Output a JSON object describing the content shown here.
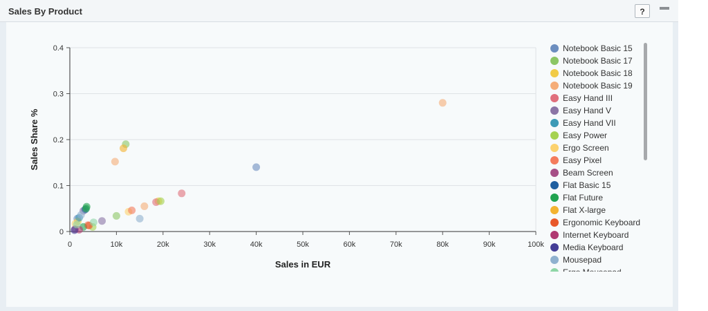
{
  "header": {
    "title": "Sales By Product",
    "help_label": "?"
  },
  "chart_data": {
    "type": "scatter",
    "xlabel": "Sales in EUR",
    "ylabel": "Sales Share %",
    "xlim": [
      0,
      100000
    ],
    "ylim": [
      0,
      0.4
    ],
    "x_ticks": [
      "0",
      "10k",
      "20k",
      "30k",
      "40k",
      "50k",
      "60k",
      "70k",
      "80k",
      "90k",
      "100k"
    ],
    "y_ticks": [
      "0",
      "0.1",
      "0.2",
      "0.3",
      "0.4"
    ],
    "grid": "horizontal",
    "legend_position": "right",
    "series": [
      {
        "name": "Notebook Basic 15",
        "color": "#6c8ebf",
        "points": [
          [
            40000,
            0.14
          ],
          [
            1600,
            0.028
          ]
        ]
      },
      {
        "name": "Notebook Basic 17",
        "color": "#8cc665",
        "points": [
          [
            12000,
            0.19
          ],
          [
            10000,
            0.034
          ]
        ]
      },
      {
        "name": "Notebook Basic 18",
        "color": "#f1cb47",
        "points": [
          [
            19000,
            0.066
          ],
          [
            1700,
            0.022
          ]
        ]
      },
      {
        "name": "Notebook Basic 19",
        "color": "#f5ad78",
        "points": [
          [
            80000,
            0.28
          ],
          [
            9700,
            0.152
          ],
          [
            16000,
            0.055
          ]
        ]
      },
      {
        "name": "Easy Hand III",
        "color": "#e06f7c",
        "points": [
          [
            24000,
            0.083
          ],
          [
            18500,
            0.064
          ]
        ]
      },
      {
        "name": "Easy Hand V",
        "color": "#8b75a6",
        "points": [
          [
            6900,
            0.023
          ],
          [
            2900,
            0.045
          ]
        ]
      },
      {
        "name": "Easy Hand VII",
        "color": "#3c9ab6",
        "points": [
          [
            2000,
            0.03
          ]
        ]
      },
      {
        "name": "Easy Power",
        "color": "#a5d250",
        "points": [
          [
            4900,
            0.01
          ],
          [
            19500,
            0.066
          ]
        ]
      },
      {
        "name": "Ergo Screen",
        "color": "#fcd26e",
        "points": [
          [
            12600,
            0.043
          ],
          [
            1200,
            0.017
          ]
        ]
      },
      {
        "name": "Easy Pixel",
        "color": "#f47c5d",
        "points": [
          [
            13300,
            0.046
          ],
          [
            3900,
            0.014
          ]
        ]
      },
      {
        "name": "Beam Screen",
        "color": "#a64f87",
        "points": [
          [
            1100,
            0.005
          ]
        ]
      },
      {
        "name": "Flat Basic 15",
        "color": "#1f5fa0",
        "points": [
          [
            3300,
            0.048
          ]
        ]
      },
      {
        "name": "Flat Future",
        "color": "#21a350",
        "points": [
          [
            3600,
            0.054
          ],
          [
            3500,
            0.05
          ],
          [
            2900,
            0.01
          ]
        ]
      },
      {
        "name": "Flat X-large",
        "color": "#f3b330",
        "points": [
          [
            11500,
            0.181
          ]
        ]
      },
      {
        "name": "Ergonomic Keyboard",
        "color": "#e8582a",
        "points": [
          [
            4100,
            0.013
          ]
        ]
      },
      {
        "name": "Internet Keyboard",
        "color": "#b03a72",
        "points": [
          [
            2000,
            0.004
          ]
        ]
      },
      {
        "name": "Media Keyboard",
        "color": "#433d96",
        "points": [
          [
            1000,
            0.003
          ]
        ]
      },
      {
        "name": "Mousepad",
        "color": "#8fb1cf",
        "points": [
          [
            15000,
            0.028
          ],
          [
            2400,
            0.036
          ]
        ]
      },
      {
        "name": "Ergo Mousepad",
        "color": "#8ed6a6",
        "points": [
          [
            5100,
            0.02
          ],
          [
            1500,
            0.015
          ]
        ]
      }
    ]
  }
}
